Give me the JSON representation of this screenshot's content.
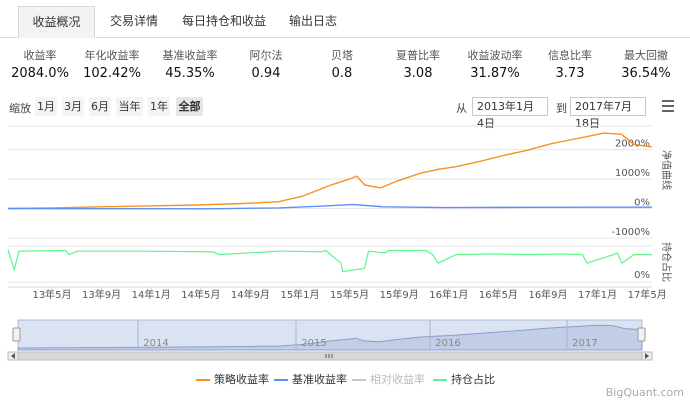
{
  "tabs": [
    {
      "label": "收益概况",
      "active": true
    },
    {
      "label": "交易详情",
      "active": false
    },
    {
      "label": "每日持仓和收益",
      "active": false
    },
    {
      "label": "输出日志",
      "active": false
    }
  ],
  "stats": [
    {
      "label": "收益率",
      "value": "2084.0%"
    },
    {
      "label": "年化收益率",
      "value": "102.42%"
    },
    {
      "label": "基准收益率",
      "value": "45.35%"
    },
    {
      "label": "阿尔法",
      "value": "0.94"
    },
    {
      "label": "贝塔",
      "value": "0.8"
    },
    {
      "label": "夏普比率",
      "value": "3.08"
    },
    {
      "label": "收益波动率",
      "value": "31.87%"
    },
    {
      "label": "信息比率",
      "value": "3.73"
    },
    {
      "label": "最大回撤",
      "value": "36.54%"
    }
  ],
  "zoom": {
    "label": "缩放",
    "buttons": [
      {
        "label": "1月",
        "active": false
      },
      {
        "label": "3月",
        "active": false
      },
      {
        "label": "6月",
        "active": false
      },
      {
        "label": "当年",
        "active": false
      },
      {
        "label": "1年",
        "active": false
      },
      {
        "label": "全部",
        "active": true
      }
    ]
  },
  "range": {
    "from_label": "从",
    "from_value": "2013年1月 4日",
    "to_label": "到",
    "to_value": "2017年7月18日"
  },
  "icons": {
    "menu": "hamburger-menu-icon"
  },
  "colors": {
    "strategy": "#f7931e",
    "benchmark": "#5b8ff9",
    "relative": "#c8c8c8",
    "position": "#5ef58a",
    "navigator_fill": "#ccd6eb"
  },
  "chart_data": {
    "type": "line",
    "x_start": "2013-01-04",
    "x_end": "2017-07-18",
    "x_ticks": [
      "13年5月",
      "13年9月",
      "14年1月",
      "14年5月",
      "14年9月",
      "15年1月",
      "15年5月",
      "15年9月",
      "16年1月",
      "16年5月",
      "16年9月",
      "17年1月",
      "17年5月"
    ],
    "navigator_years": [
      "2014",
      "2015",
      "2016",
      "2017"
    ],
    "upper_panel": {
      "axis_title": "净值曲线",
      "y_ticks": [
        "2000%",
        "1000%",
        "0%",
        "-1000%"
      ],
      "ylim": [
        -1000,
        2800
      ],
      "series": [
        {
          "name": "策略收益率",
          "color": "#f7931e",
          "x": [
            "2013-01-04",
            "2013-05-01",
            "2013-09-01",
            "2014-01-01",
            "2014-05-01",
            "2014-09-01",
            "2014-12-01",
            "2015-02-01",
            "2015-04-15",
            "2015-06-01",
            "2015-06-20",
            "2015-07-10",
            "2015-08-20",
            "2015-10-01",
            "2015-12-01",
            "2016-01-15",
            "2016-03-01",
            "2016-05-01",
            "2016-07-01",
            "2016-09-01",
            "2016-11-01",
            "2017-01-01",
            "2017-02-15",
            "2017-03-15",
            "2017-05-01",
            "2017-06-01",
            "2017-07-18"
          ],
          "values": [
            0,
            20,
            60,
            90,
            120,
            170,
            230,
            420,
            800,
            1000,
            1100,
            800,
            700,
            930,
            1200,
            1330,
            1420,
            1600,
            1800,
            1980,
            2200,
            2360,
            2480,
            2560,
            2520,
            2180,
            2084
          ]
        },
        {
          "name": "基准收益率",
          "color": "#5b8ff9",
          "x": [
            "2013-01-04",
            "2013-09-01",
            "2014-06-01",
            "2014-12-01",
            "2015-04-01",
            "2015-06-10",
            "2015-08-25",
            "2016-01-29",
            "2016-09-01",
            "2017-03-01",
            "2017-07-18"
          ],
          "values": [
            0,
            -5,
            -8,
            20,
            90,
            140,
            60,
            30,
            40,
            45,
            45
          ]
        },
        {
          "name": "相对收益率",
          "color": "#c8c8c8",
          "hidden": true,
          "x": [],
          "values": []
        }
      ]
    },
    "lower_panel": {
      "axis_title": "持仓占比",
      "y_ticks": [
        "0%"
      ],
      "series": [
        {
          "name": "持仓占比",
          "color": "#5ef58a",
          "x": [
            "2013-01-04",
            "2013-01-20",
            "2013-02-01",
            "2013-06-01",
            "2013-06-10",
            "2013-07-01",
            "2014-01-01",
            "2014-06-15",
            "2014-07-01",
            "2014-12-01",
            "2015-01-01",
            "2015-03-20",
            "2015-04-01",
            "2015-05-10",
            "2015-05-15",
            "2015-07-10",
            "2015-07-20",
            "2015-09-01",
            "2015-09-10",
            "2015-12-15",
            "2016-01-01",
            "2016-01-15",
            "2016-03-01",
            "2016-06-01",
            "2016-09-01",
            "2016-12-01",
            "2017-01-20",
            "2017-02-01",
            "2017-04-10",
            "2017-04-20",
            "2017-05-01",
            "2017-05-20",
            "2017-06-01",
            "2017-07-18"
          ],
          "values": [
            95,
            35,
            90,
            92,
            80,
            90,
            90,
            88,
            80,
            90,
            90,
            88,
            92,
            55,
            30,
            40,
            90,
            85,
            92,
            92,
            80,
            55,
            80,
            82,
            80,
            82,
            80,
            55,
            80,
            85,
            55,
            70,
            80,
            80
          ]
        }
      ]
    }
  },
  "legend": [
    {
      "label": "策略收益率",
      "color": "#f7931e",
      "enabled": true
    },
    {
      "label": "基准收益率",
      "color": "#5b8ff9",
      "enabled": true
    },
    {
      "label": "相对收益率",
      "color": "#c8c8c8",
      "enabled": false
    },
    {
      "label": "持仓占比",
      "color": "#5ef58a",
      "enabled": true
    }
  ],
  "brand": "BigQuant.com"
}
